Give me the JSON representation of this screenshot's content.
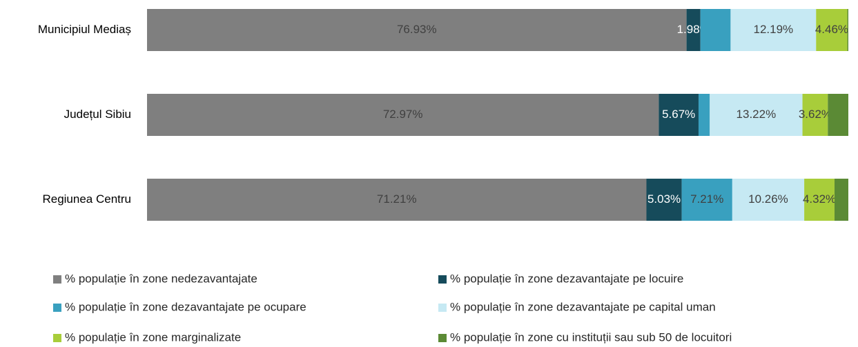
{
  "chart_data": {
    "type": "stacked_barh",
    "categories": [
      "Municipiul Mediaș",
      "Județul Sibiu",
      "Regiunea Centru"
    ],
    "xlim": [
      0,
      100
    ],
    "series": [
      {
        "name": "% populație în zone nedezavantajate",
        "color": "#7f7f7f",
        "values": [
          76.93,
          72.97,
          71.21
        ],
        "value_labels": [
          "76.93%",
          "72.97%",
          "71.21%"
        ]
      },
      {
        "name": "% populație în zone dezavantajate pe locuire",
        "color": "#164b5b",
        "values": [
          1.98,
          5.67,
          5.03
        ],
        "value_labels": [
          "1.98%",
          "5.67%",
          "5.03%"
        ]
      },
      {
        "name": "% populație în zone dezavantajate pe ocupare",
        "color": "#39a0bf",
        "values": [
          4.3,
          1.6,
          7.21
        ],
        "value_labels": [
          null,
          null,
          "7.21%"
        ]
      },
      {
        "name": "% populație în zone dezavantajate pe capital uman",
        "color": "#c6e9f3",
        "values": [
          12.19,
          13.22,
          10.26
        ],
        "value_labels": [
          "12.19%",
          "13.22%",
          "10.26%"
        ]
      },
      {
        "name": "% populație în zone marginalizate",
        "color": "#a8cd3a",
        "values": [
          4.46,
          3.62,
          4.32
        ],
        "value_labels": [
          "4.46%",
          "3.62%",
          "4.32%"
        ]
      },
      {
        "name": "% populație în zone cu instituții sau sub 50 de locuitori",
        "color": "#5b8a35",
        "values": [
          0.14,
          2.92,
          1.97
        ],
        "value_labels": [
          null,
          null,
          null
        ]
      }
    ],
    "legend": "bottom"
  }
}
